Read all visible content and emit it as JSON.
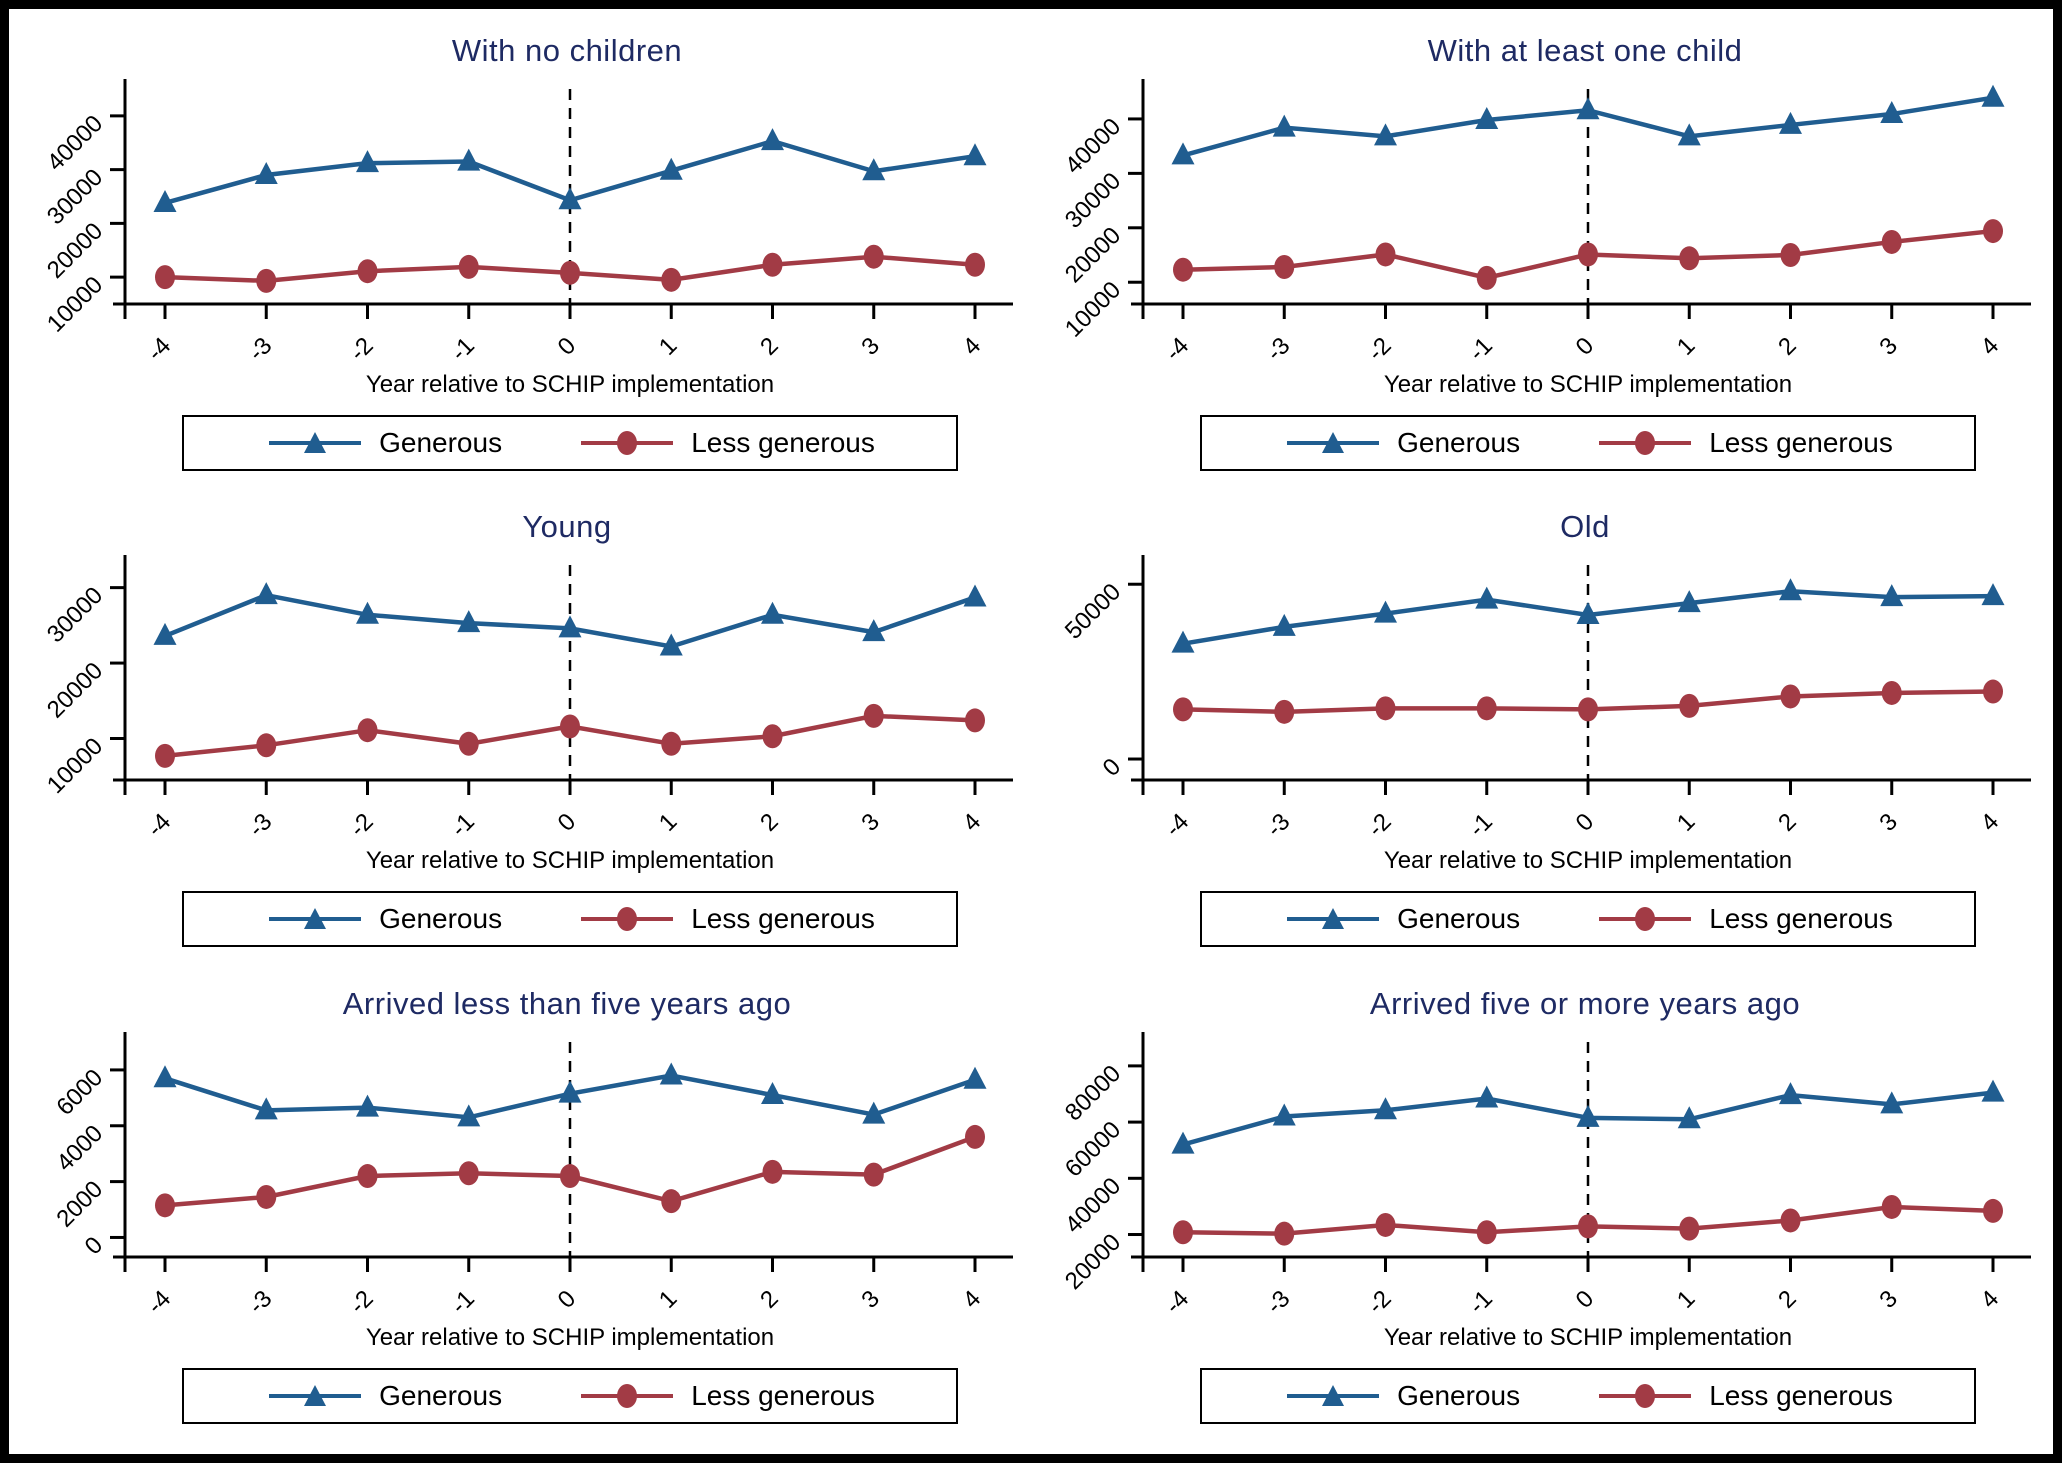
{
  "figure": {
    "background": "#ffffff",
    "border_color": "#000000"
  },
  "colors": {
    "generous": "#205d90",
    "less_generous": "#a23b45",
    "title_navy": "#1e2a63",
    "axis_black": "#000000"
  },
  "legend": {
    "items": [
      {
        "label": "Generous",
        "marker": "triangle",
        "color": "#205d90"
      },
      {
        "label": "Less generous",
        "marker": "circle",
        "color": "#a23b45"
      }
    ]
  },
  "xlabel": "Year relative to SCHIP implementation",
  "chart_data": [
    {
      "type": "line",
      "title": "With no children",
      "xlabel": "Year relative to SCHIP implementation",
      "x": [
        -4,
        -3,
        -2,
        -1,
        0,
        1,
        2,
        3,
        4
      ],
      "vline_x": 0,
      "yticks": [
        10000,
        20000,
        30000,
        40000
      ],
      "ylim": [
        5000,
        45000
      ],
      "grid": false,
      "legend_position": "below",
      "series": [
        {
          "name": "Generous",
          "marker": "triangle",
          "color": "#205d90",
          "values": [
            23800,
            29000,
            31200,
            31500,
            24300,
            29800,
            35300,
            29700,
            32500
          ]
        },
        {
          "name": "Less generous",
          "marker": "circle",
          "color": "#a23b45",
          "values": [
            10000,
            9300,
            11100,
            11900,
            10800,
            9500,
            12300,
            13800,
            12300
          ]
        }
      ]
    },
    {
      "type": "line",
      "title": "With at least one child",
      "xlabel": "Year relative to SCHIP implementation",
      "x": [
        -4,
        -3,
        -2,
        -1,
        0,
        1,
        2,
        3,
        4
      ],
      "vline_x": 0,
      "yticks": [
        10000,
        20000,
        30000,
        40000
      ],
      "ylim": [
        6000,
        45500
      ],
      "grid": false,
      "legend_position": "below",
      "series": [
        {
          "name": "Generous",
          "marker": "triangle",
          "color": "#205d90",
          "values": [
            33300,
            38400,
            36800,
            39800,
            41600,
            36800,
            38900,
            40900,
            43900
          ]
        },
        {
          "name": "Less generous",
          "marker": "circle",
          "color": "#a23b45",
          "values": [
            12300,
            12800,
            15100,
            10800,
            15100,
            14400,
            15000,
            17400,
            19400
          ]
        }
      ]
    },
    {
      "type": "line",
      "title": "Young",
      "xlabel": "Year relative to SCHIP implementation",
      "x": [
        -4,
        -3,
        -2,
        -1,
        0,
        1,
        2,
        3,
        4
      ],
      "vline_x": 0,
      "yticks": [
        10000,
        20000,
        30000
      ],
      "ylim": [
        4500,
        33000
      ],
      "grid": false,
      "legend_position": "below",
      "series": [
        {
          "name": "Generous",
          "marker": "triangle",
          "color": "#205d90",
          "values": [
            23600,
            29000,
            26400,
            25300,
            24600,
            22200,
            26400,
            24100,
            28700
          ]
        },
        {
          "name": "Less generous",
          "marker": "circle",
          "color": "#a23b45",
          "values": [
            7700,
            9100,
            11100,
            9300,
            11600,
            9300,
            10300,
            13000,
            12400
          ]
        }
      ]
    },
    {
      "type": "line",
      "title": "Old",
      "xlabel": "Year relative to SCHIP implementation",
      "x": [
        -4,
        -3,
        -2,
        -1,
        0,
        1,
        2,
        3,
        4
      ],
      "vline_x": 0,
      "yticks": [
        0,
        50000
      ],
      "ylim": [
        -6000,
        55500
      ],
      "grid": false,
      "legend_position": "below",
      "series": [
        {
          "name": "Generous",
          "marker": "triangle",
          "color": "#205d90",
          "values": [
            33000,
            37800,
            41600,
            45600,
            41200,
            44600,
            48000,
            46300,
            46600
          ]
        },
        {
          "name": "Less generous",
          "marker": "circle",
          "color": "#a23b45",
          "values": [
            14200,
            13500,
            14500,
            14500,
            14200,
            15200,
            17900,
            18900,
            19300
          ]
        }
      ]
    },
    {
      "type": "line",
      "title": "Arrived less than five years ago",
      "xlabel": "Year relative to SCHIP implementation",
      "x": [
        -4,
        -3,
        -2,
        -1,
        0,
        1,
        2,
        3,
        4
      ],
      "vline_x": 0,
      "yticks": [
        0,
        2000,
        4000,
        6000
      ],
      "ylim": [
        -700,
        7000
      ],
      "grid": false,
      "legend_position": "below",
      "series": [
        {
          "name": "Generous",
          "marker": "triangle",
          "color": "#205d90",
          "values": [
            5700,
            4550,
            4650,
            4300,
            5150,
            5800,
            5100,
            4400,
            5650
          ]
        },
        {
          "name": "Less generous",
          "marker": "circle",
          "color": "#a23b45",
          "values": [
            1150,
            1450,
            2200,
            2300,
            2200,
            1300,
            2350,
            2250,
            3600
          ]
        }
      ]
    },
    {
      "type": "line",
      "title": "Arrived five or more years ago",
      "xlabel": "Year relative to SCHIP implementation",
      "x": [
        -4,
        -3,
        -2,
        -1,
        0,
        1,
        2,
        3,
        4
      ],
      "vline_x": 0,
      "yticks": [
        20000,
        40000,
        60000,
        80000
      ],
      "ylim": [
        12000,
        88500
      ],
      "grid": false,
      "legend_position": "below",
      "series": [
        {
          "name": "Generous",
          "marker": "triangle",
          "color": "#205d90",
          "values": [
            52000,
            62000,
            64200,
            68400,
            61500,
            61000,
            69600,
            66300,
            70500
          ]
        },
        {
          "name": "Less generous",
          "marker": "circle",
          "color": "#a23b45",
          "values": [
            20800,
            20300,
            23400,
            20800,
            22900,
            22100,
            25000,
            29800,
            28400
          ]
        }
      ]
    }
  ]
}
